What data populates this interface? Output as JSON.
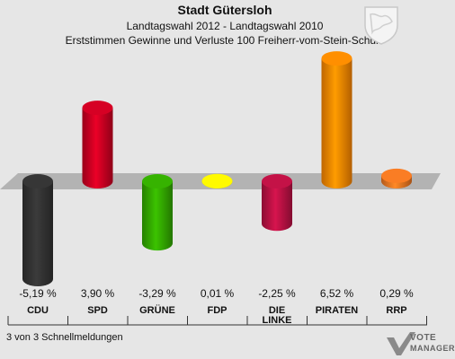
{
  "header": {
    "city": "Stadt Gütersloh",
    "comparison": "Landtagswahl 2012 - Landtagswahl 2010",
    "subtitle": "Erststimmen Gewinne und Verluste 100 Freiherr-vom-Stein-Schule"
  },
  "footer": {
    "reports": "3 von 3 Schnellmeldungen",
    "logo_line1": "VOTE",
    "logo_line2": "MANAGER"
  },
  "colors": {
    "background": "#e6e6e6",
    "baseline_band": "#b3b3b3"
  },
  "chart_data": {
    "type": "bar",
    "categories": [
      "CDU",
      "SPD",
      "GRÜNE",
      "FDP",
      "DIE LINKE",
      "PIRATEN",
      "RRP"
    ],
    "values": [
      -5.19,
      3.9,
      -3.29,
      0.01,
      -2.25,
      6.52,
      0.29
    ],
    "value_labels": [
      "-5,19 %",
      "3,90 %",
      "-3,29 %",
      "0,01 %",
      "-2,25 %",
      "6,52 %",
      "0,29 %"
    ],
    "colors": [
      "#333333",
      "#cc0022",
      "#33aa00",
      "#ffee00",
      "#bb1144",
      "#ff8800",
      "#ee7722"
    ],
    "title": "Landtagswahl 2012 - Landtagswahl 2010",
    "grid": false
  }
}
